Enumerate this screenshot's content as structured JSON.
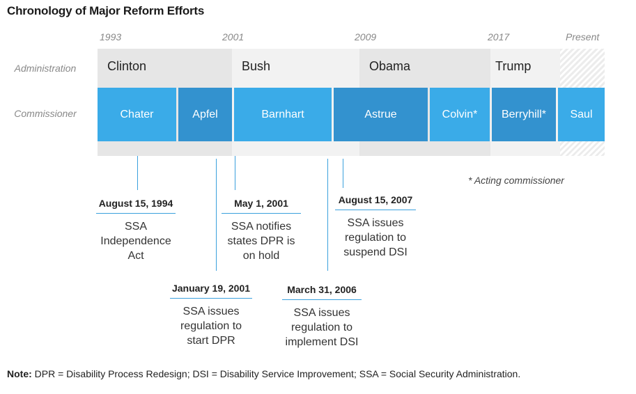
{
  "title": "Chronology of Major Reform Efforts",
  "years": [
    "1993",
    "2001",
    "2009",
    "2017",
    "Present"
  ],
  "row_labels": {
    "administration": "Administration",
    "commissioner": "Commissioner"
  },
  "administrations": [
    {
      "name": "Clinton",
      "color": "#e6e6e6"
    },
    {
      "name": "Bush",
      "color": "#f2f2f2"
    },
    {
      "name": "Obama",
      "color": "#e6e6e6"
    },
    {
      "name": "Trump",
      "color": "#f2f2f2"
    }
  ],
  "commissioners": [
    {
      "name": "Chater",
      "color": "#3aabe8"
    },
    {
      "name": "Apfel",
      "color": "#3392cf"
    },
    {
      "name": "Barnhart",
      "color": "#3aabe8"
    },
    {
      "name": "Astrue",
      "color": "#3392cf"
    },
    {
      "name": "Colvin*",
      "color": "#3aabe8"
    },
    {
      "name": "Berryhill*",
      "color": "#3392cf"
    },
    {
      "name": "Saul",
      "color": "#3aabe8"
    }
  ],
  "acting_note": "* Acting commissioner",
  "events": [
    {
      "date": "August 15, 1994",
      "text": [
        "SSA",
        "Independence",
        "Act"
      ]
    },
    {
      "date": "January 19, 2001",
      "text": [
        "SSA issues",
        "regulation to",
        "start DPR"
      ]
    },
    {
      "date": "May 1, 2001",
      "text": [
        "SSA notifies",
        "states DPR is",
        "on hold"
      ]
    },
    {
      "date": "March 31, 2006",
      "text": [
        "SSA issues",
        "regulation to",
        "implement DSI"
      ]
    },
    {
      "date": "August 15, 2007",
      "text": [
        "SSA issues",
        "regulation to",
        "suspend DSI"
      ]
    }
  ],
  "note": {
    "label": "Note:",
    "text": " DPR = Disability Process Redesign; DSI = Disability Service Improvement; SSA = Social Security Administration."
  }
}
